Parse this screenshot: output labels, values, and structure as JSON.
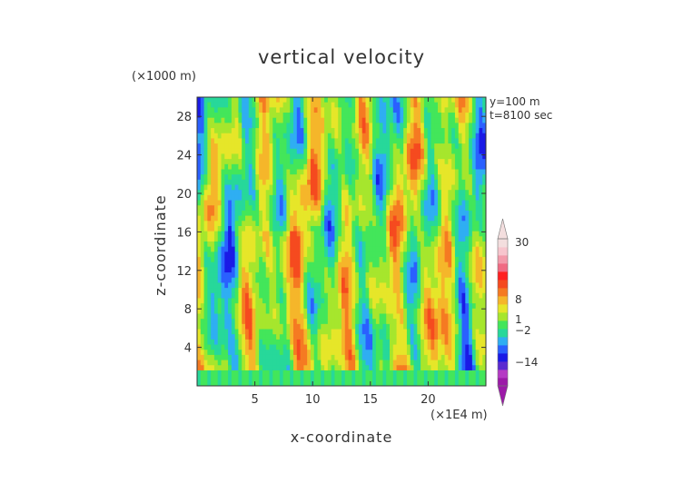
{
  "chart_data": {
    "type": "heatmap",
    "title": "vertical velocity",
    "xlabel": "x-coordinate",
    "ylabel": "z-coordinate",
    "x_unit": "(×1E4 m)",
    "y_unit": "(×1000 m)",
    "annotations": [
      "y=100 m",
      "t=8100 sec"
    ],
    "xlim": [
      0,
      25
    ],
    "ylim": [
      0,
      30
    ],
    "x_ticks": [
      5,
      10,
      15,
      20
    ],
    "y_ticks": [
      4,
      8,
      12,
      16,
      20,
      24,
      28
    ],
    "colorbar": {
      "tick_labels": [
        "30",
        "8",
        "1",
        "-2",
        "-14"
      ],
      "colors": [
        "#9c1aa8",
        "#b53ac4",
        "#5b2bd0",
        "#1a1ae6",
        "#2a60ff",
        "#2faef2",
        "#27d89a",
        "#43e65a",
        "#a6e62d",
        "#e6e629",
        "#f5b62a",
        "#f57a22",
        "#f54a1f",
        "#ff2020",
        "#f06a82",
        "#f39aaa",
        "#f7c5cd",
        "#f3dede"
      ],
      "extend": "both"
    },
    "description_values": "2D field of vertical velocity; values roughly between -14 and 30, dominated by -2 to 8"
  }
}
